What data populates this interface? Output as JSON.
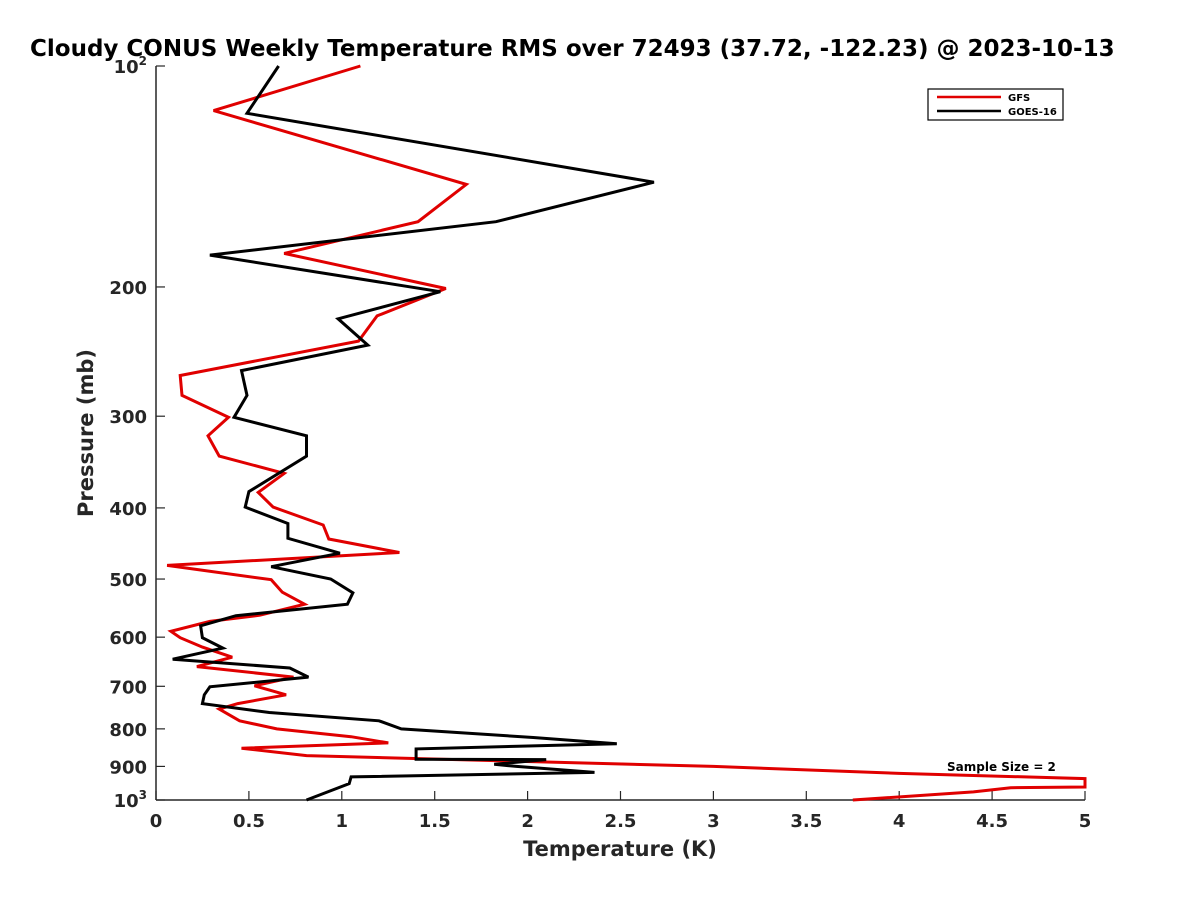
{
  "chart_data": {
    "type": "line",
    "title": "Cloudy CONUS Weekly Temperature RMS over 72493 (37.72, -122.23) @ 2023-10-13",
    "xlabel": "Temperature (K)",
    "ylabel": "Pressure (mb)",
    "xlim": [
      0,
      5
    ],
    "ylim": [
      100,
      1000
    ],
    "y_scale": "log",
    "y_reversed": true,
    "grid": false,
    "legend_position": "top-right",
    "x_ticks": [
      "0",
      "0.5",
      "1",
      "1.5",
      "2",
      "2.5",
      "3",
      "3.5",
      "4",
      "4.5",
      "5"
    ],
    "y_ticks": [
      {
        "value": 100,
        "label": "10",
        "sup": "2"
      },
      {
        "value": 200,
        "label": "200"
      },
      {
        "value": 300,
        "label": "300"
      },
      {
        "value": 400,
        "label": "400"
      },
      {
        "value": 500,
        "label": "500"
      },
      {
        "value": 600,
        "label": "600"
      },
      {
        "value": 700,
        "label": "700"
      },
      {
        "value": 800,
        "label": "800"
      },
      {
        "value": 900,
        "label": "900"
      },
      {
        "value": 1000,
        "label": "10",
        "sup": "3"
      }
    ],
    "annotation": "Sample Size = 2",
    "series": [
      {
        "name": "GFS",
        "color": "#e00000",
        "points": [
          [
            1.1,
            100
          ],
          [
            0.31,
            115
          ],
          [
            1.67,
            145
          ],
          [
            1.41,
            163
          ],
          [
            0.69,
            180
          ],
          [
            1.56,
            201
          ],
          [
            1.19,
            219
          ],
          [
            1.09,
            237
          ],
          [
            0.13,
            264
          ],
          [
            0.14,
            281
          ],
          [
            0.39,
            301
          ],
          [
            0.28,
            319
          ],
          [
            0.34,
            340
          ],
          [
            0.69,
            359
          ],
          [
            0.55,
            381
          ],
          [
            0.63,
            399
          ],
          [
            0.9,
            422
          ],
          [
            0.93,
            441
          ],
          [
            1.31,
            460
          ],
          [
            0.06,
            479
          ],
          [
            0.62,
            501
          ],
          [
            0.68,
            521
          ],
          [
            0.8,
            541
          ],
          [
            0.56,
            560
          ],
          [
            0.29,
            571
          ],
          [
            0.08,
            589
          ],
          [
            0.13,
            601
          ],
          [
            0.25,
            619
          ],
          [
            0.41,
            639
          ],
          [
            0.22,
            658
          ],
          [
            0.74,
            680
          ],
          [
            0.53,
            699
          ],
          [
            0.7,
            719
          ],
          [
            0.44,
            739
          ],
          [
            0.34,
            752
          ],
          [
            0.45,
            780
          ],
          [
            0.65,
            800
          ],
          [
            1.05,
            820
          ],
          [
            1.25,
            836
          ],
          [
            0.46,
            850
          ],
          [
            0.81,
            870
          ],
          [
            3.0,
            900
          ],
          [
            4.0,
            920
          ],
          [
            5.0,
            935
          ],
          [
            5.0,
            960
          ],
          [
            4.6,
            962
          ],
          [
            4.4,
            975
          ],
          [
            3.75,
            1000
          ]
        ]
      },
      {
        "name": "GOES-16",
        "color": "#000000",
        "points": [
          [
            0.66,
            100
          ],
          [
            0.49,
            116
          ],
          [
            2.68,
            144
          ],
          [
            1.83,
            163
          ],
          [
            0.29,
            181
          ],
          [
            1.53,
            203
          ],
          [
            0.98,
            221
          ],
          [
            1.14,
            240
          ],
          [
            0.46,
            260
          ],
          [
            0.49,
            281
          ],
          [
            0.42,
            301
          ],
          [
            0.81,
            319
          ],
          [
            0.81,
            340
          ],
          [
            0.5,
            380
          ],
          [
            0.48,
            399
          ],
          [
            0.71,
            420
          ],
          [
            0.71,
            440
          ],
          [
            0.99,
            461
          ],
          [
            0.62,
            481
          ],
          [
            0.94,
            500
          ],
          [
            1.06,
            522
          ],
          [
            1.03,
            541
          ],
          [
            0.43,
            561
          ],
          [
            0.24,
            579
          ],
          [
            0.25,
            601
          ],
          [
            0.36,
            621
          ],
          [
            0.09,
            643
          ],
          [
            0.72,
            661
          ],
          [
            0.82,
            680
          ],
          [
            0.29,
            701
          ],
          [
            0.26,
            719
          ],
          [
            0.25,
            739
          ],
          [
            0.61,
            760
          ],
          [
            1.2,
            780
          ],
          [
            1.32,
            800
          ],
          [
            2.03,
            822
          ],
          [
            2.48,
            838
          ],
          [
            1.4,
            852
          ],
          [
            1.4,
            880
          ],
          [
            2.1,
            881
          ],
          [
            1.82,
            894
          ],
          [
            1.94,
            900
          ],
          [
            2.36,
            917
          ],
          [
            1.05,
            930
          ],
          [
            1.04,
            950
          ],
          [
            0.81,
            1000
          ]
        ]
      }
    ]
  }
}
